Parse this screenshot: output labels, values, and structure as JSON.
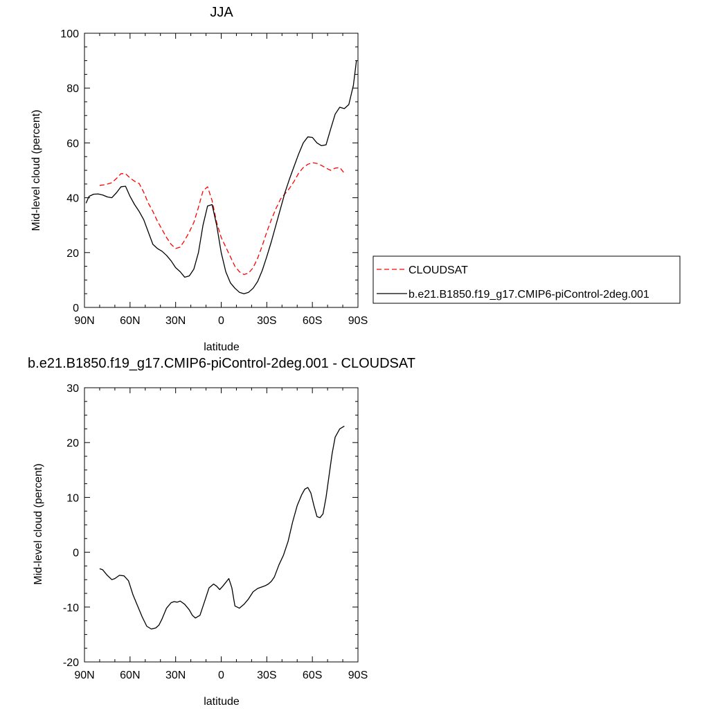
{
  "chart_data": [
    {
      "type": "line",
      "title": "JJA",
      "xlabel": "latitude",
      "ylabel": "Mid-level cloud (percent)",
      "xlim": [
        90,
        -90
      ],
      "ylim": [
        0,
        100
      ],
      "x_ticks": [
        {
          "value": 90,
          "label": "90N"
        },
        {
          "value": 60,
          "label": "60N"
        },
        {
          "value": 30,
          "label": "30N"
        },
        {
          "value": 0,
          "label": "0"
        },
        {
          "value": -30,
          "label": "30S"
        },
        {
          "value": -60,
          "label": "60S"
        },
        {
          "value": -90,
          "label": "90S"
        }
      ],
      "y_ticks": [
        {
          "value": 0,
          "label": "0"
        },
        {
          "value": 20,
          "label": "20"
        },
        {
          "value": 40,
          "label": "40"
        },
        {
          "value": 60,
          "label": "60"
        },
        {
          "value": 80,
          "label": "80"
        },
        {
          "value": 100,
          "label": "100"
        }
      ],
      "legend_position": "right",
      "series": [
        {
          "name": "CLOUDSAT",
          "color": "#ff0000",
          "style": "dashed",
          "x": [
            80,
            76,
            72,
            69,
            66,
            63,
            60,
            57,
            54,
            51,
            48,
            45,
            42,
            39,
            36,
            33,
            30,
            27,
            24,
            21,
            18,
            15,
            12,
            9,
            6,
            3,
            0,
            -3,
            -6,
            -9,
            -12,
            -15,
            -18,
            -21,
            -24,
            -27,
            -30,
            -33,
            -36,
            -39,
            -42,
            -45,
            -48,
            -51,
            -54,
            -57,
            -60,
            -63,
            -66,
            -69,
            -72,
            -75,
            -78,
            -81
          ],
          "y": [
            44.5,
            44.8,
            45.5,
            47,
            48.8,
            48.8,
            47.2,
            46,
            45.2,
            42,
            38,
            35,
            31.5,
            28.5,
            25.5,
            23,
            21.5,
            22,
            24.5,
            27.5,
            31,
            36.5,
            42.5,
            44,
            39,
            31,
            25.5,
            22,
            18.5,
            15,
            13,
            12,
            12.5,
            14.5,
            18,
            22.5,
            27.5,
            32,
            36,
            39.5,
            41.5,
            43.5,
            46,
            49,
            51,
            52.2,
            52.8,
            52.5,
            51.8,
            50.8,
            50,
            50.8,
            51,
            49
          ]
        },
        {
          "name": "b.e21.B1850.f19_g17.CMIP6-piControl-2deg.001",
          "color": "#000000",
          "style": "solid",
          "x": [
            89,
            87,
            84,
            81,
            78,
            75,
            72,
            69,
            66,
            63,
            60,
            57,
            54,
            51,
            48,
            45,
            42,
            39,
            36,
            33,
            30,
            27,
            24,
            21,
            18,
            15,
            12,
            9,
            6,
            3,
            0,
            -3,
            -6,
            -9,
            -12,
            -15,
            -18,
            -21,
            -24,
            -27,
            -30,
            -33,
            -36,
            -39,
            -42,
            -45,
            -48,
            -51,
            -54,
            -57,
            -60,
            -63,
            -66,
            -69,
            -72,
            -75,
            -78,
            -81,
            -84,
            -87,
            -89
          ],
          "y": [
            38,
            40.5,
            41.3,
            41.4,
            41,
            40.3,
            40,
            41.8,
            44,
            44.2,
            40.5,
            37.5,
            35,
            32,
            27.5,
            23,
            21.5,
            20.5,
            19,
            17,
            14.5,
            13,
            11,
            11.5,
            14,
            20,
            30,
            37,
            37.5,
            30,
            20,
            13,
            9,
            7,
            5.5,
            5,
            5.5,
            7,
            9.5,
            13.5,
            18.5,
            24,
            30,
            36,
            42,
            47,
            51.5,
            56,
            60,
            62.2,
            62,
            60,
            59,
            59.3,
            65,
            70.5,
            73,
            72.5,
            74,
            81,
            90
          ]
        }
      ]
    },
    {
      "type": "line",
      "title": "b.e21.B1850.f19_g17.CMIP6-piControl-2deg.001 - CLOUDSAT",
      "xlabel": "latitude",
      "ylabel": "Mid-level cloud (percent)",
      "xlim": [
        90,
        -90
      ],
      "ylim": [
        -20,
        30
      ],
      "x_ticks": [
        {
          "value": 90,
          "label": "90N"
        },
        {
          "value": 60,
          "label": "60N"
        },
        {
          "value": 30,
          "label": "30N"
        },
        {
          "value": 0,
          "label": "0"
        },
        {
          "value": -30,
          "label": "30S"
        },
        {
          "value": -60,
          "label": "60S"
        },
        {
          "value": -90,
          "label": "90S"
        }
      ],
      "y_ticks": [
        {
          "value": -20,
          "label": "-20"
        },
        {
          "value": -10,
          "label": "-10"
        },
        {
          "value": 0,
          "label": "0"
        },
        {
          "value": 10,
          "label": "10"
        },
        {
          "value": 20,
          "label": "20"
        },
        {
          "value": 30,
          "label": "30"
        }
      ],
      "series": [
        {
          "color": "#000000",
          "style": "solid",
          "x": [
            80,
            78,
            75,
            72,
            70,
            67,
            64,
            61,
            58,
            55,
            52,
            49,
            46,
            43,
            41,
            39,
            36,
            33,
            31,
            29,
            27,
            24,
            21,
            19,
            17,
            14,
            11,
            8,
            5,
            3,
            1,
            -1,
            -3,
            -5,
            -7,
            -9,
            -12,
            -15,
            -18,
            -21,
            -24,
            -27,
            -29,
            -31,
            -33,
            -35,
            -38,
            -41,
            -44,
            -47,
            -50,
            -53,
            -55,
            -57,
            -59,
            -61,
            -63,
            -65,
            -67,
            -69,
            -71,
            -73,
            -75,
            -78,
            -81
          ],
          "y": [
            -3,
            -3.2,
            -4.2,
            -5,
            -4.8,
            -4.2,
            -4.3,
            -5.2,
            -7.8,
            -9.8,
            -11.8,
            -13.5,
            -14,
            -13.8,
            -13.3,
            -12.2,
            -10.2,
            -9.2,
            -9,
            -9.1,
            -8.9,
            -9.5,
            -10.5,
            -11.5,
            -12,
            -11.5,
            -9,
            -6.5,
            -5.8,
            -6.2,
            -6.8,
            -6.2,
            -5.5,
            -4.8,
            -6.5,
            -9.8,
            -10.2,
            -9.5,
            -8.5,
            -7.2,
            -6.6,
            -6.3,
            -6.1,
            -5.8,
            -5.3,
            -4.5,
            -2.3,
            -0.5,
            2,
            5.5,
            8.5,
            10.5,
            11.5,
            11.8,
            10.8,
            8.5,
            6.5,
            6.3,
            7,
            10,
            14,
            18,
            21,
            22.5,
            23
          ]
        }
      ]
    }
  ]
}
